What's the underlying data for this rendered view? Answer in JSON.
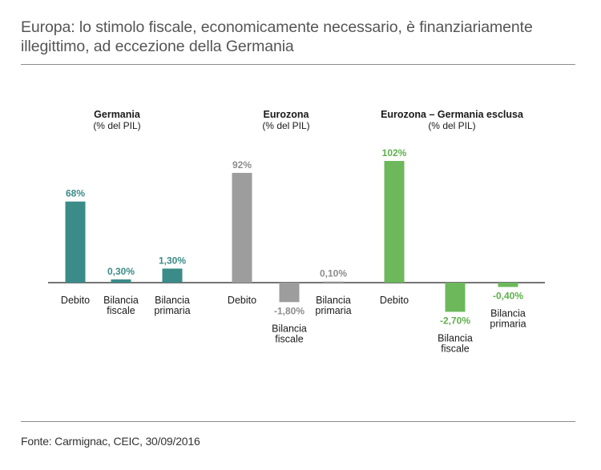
{
  "title_lines": [
    "Europa: lo stimolo fiscale, economicamente necessario, è finanziariamente",
    "illegittimo, ad eccezione della Germania"
  ],
  "source": "Fonte: Carmignac, CEIC, 30/09/2016",
  "chart_data": {
    "type": "bar",
    "title": "Europa: lo stimolo fiscale, economicamente necessario, è finanziariamente illegittimo, ad eccezione della Germania",
    "xlabel": "",
    "ylabel": "% del PIL",
    "groups": [
      {
        "name": "Germania",
        "subtitle": "(% del PIL)",
        "color": "#3b8b88",
        "label_color": "#3b8b88",
        "bars": [
          {
            "category": [
              "Debito"
            ],
            "value": 68,
            "label": "68%"
          },
          {
            "category": [
              "Bilancia",
              "fiscale"
            ],
            "value": 0.3,
            "label": "0,30%"
          },
          {
            "category": [
              "Bilancia",
              "primaria"
            ],
            "value": 1.3,
            "label": "1,30%"
          }
        ]
      },
      {
        "name": "Eurozona",
        "subtitle": "(% del PIL)",
        "color": "#9d9d9d",
        "label_color": "#8c8c8c",
        "bars": [
          {
            "category": [
              "Debito"
            ],
            "value": 92,
            "label": "92%"
          },
          {
            "category": [
              "Bilancia",
              "fiscale"
            ],
            "value": -1.8,
            "label": "-1,80%"
          },
          {
            "category": [
              "Bilancia",
              "primaria"
            ],
            "value": 0.1,
            "label": "0,10%"
          }
        ]
      },
      {
        "name": "Eurozona – Germania esclusa",
        "subtitle": "(% del PIL)",
        "color": "#6cb85a",
        "label_color": "#5fb04b",
        "bars": [
          {
            "category": [
              "Debito"
            ],
            "value": 102,
            "label": "102%"
          },
          {
            "category": [
              "Bilancia",
              "fiscale"
            ],
            "value": -2.7,
            "label": "-2,70%"
          },
          {
            "category": [
              "Bilancia",
              "primaria"
            ],
            "value": -0.4,
            "label": "-0,40%"
          }
        ]
      }
    ]
  }
}
